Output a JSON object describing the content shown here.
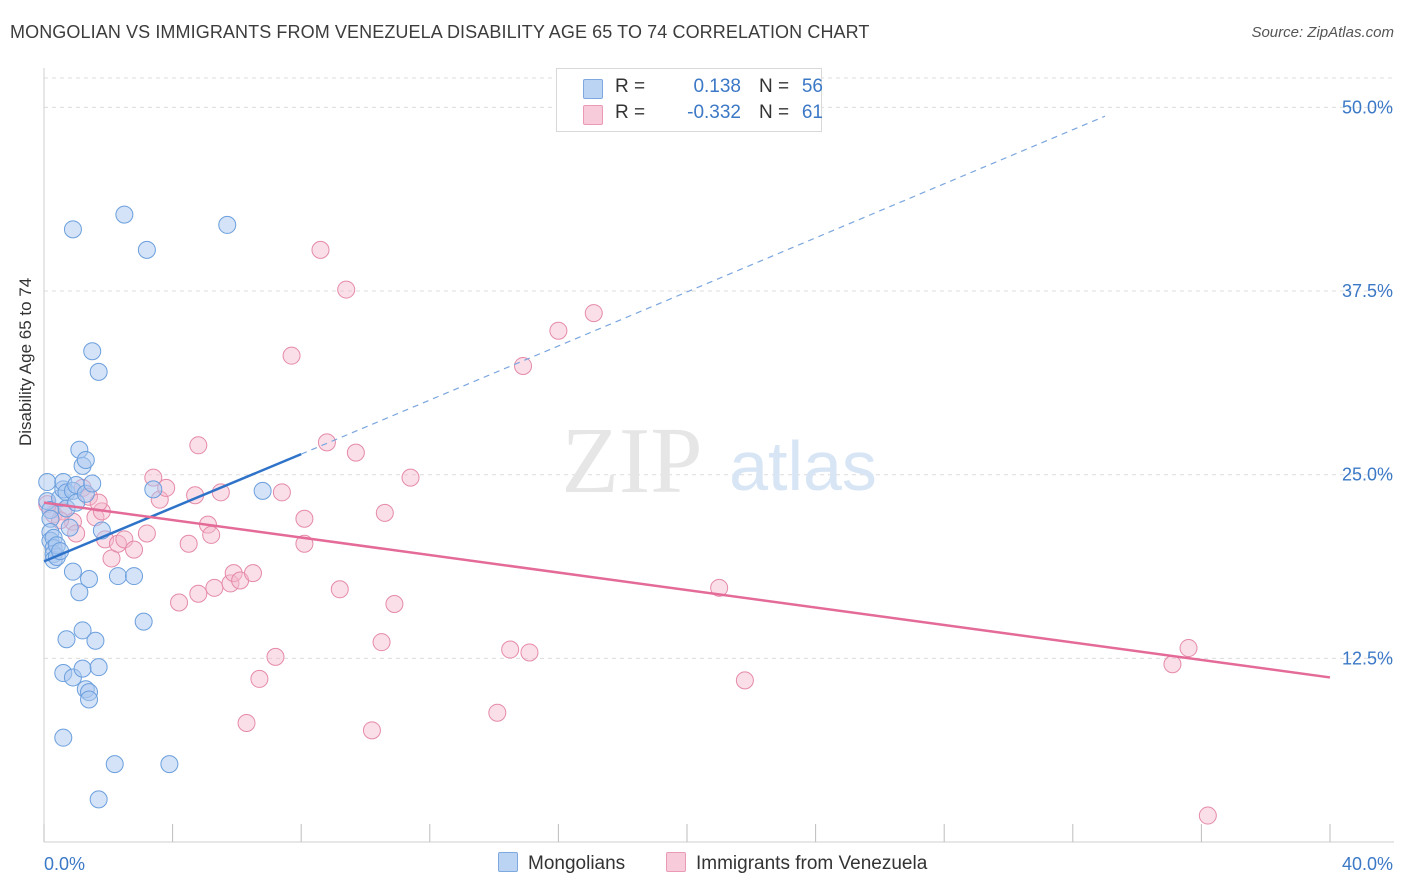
{
  "title": "MONGOLIAN VS IMMIGRANTS FROM VENEZUELA DISABILITY AGE 65 TO 74 CORRELATION CHART",
  "source": "Source: ZipAtlas.com",
  "watermark": {
    "zip": "ZIP",
    "atlas": "atlas"
  },
  "legend": {
    "r_label": "R =",
    "n_label": "N =",
    "series": [
      {
        "r": "0.138",
        "n": "56"
      },
      {
        "r": "-0.332",
        "n": "61"
      }
    ]
  },
  "colors": {
    "blue_fill": "#a9c8ef",
    "blue_stroke": "#6b9fdd",
    "blue_line": "#2f73c9",
    "pink_fill": "#f5b8cb",
    "pink_stroke": "#e58aa8",
    "pink_line": "#e46a97",
    "axis_text": "#3b78c6",
    "grid": "#dcdcdc"
  },
  "chart_data": {
    "type": "scatter",
    "title": "MONGOLIAN VS IMMIGRANTS FROM VENEZUELA DISABILITY AGE 65 TO 74 CORRELATION CHART",
    "xlabel": "",
    "ylabel": "Disability Age 65 to 74",
    "xlim": [
      0,
      40
    ],
    "ylim": [
      0,
      52
    ],
    "x_tick_labels": [
      "0.0%",
      "40.0%"
    ],
    "y_ticks": [
      12.5,
      25.0,
      37.5,
      50.0
    ],
    "y_tick_labels": [
      "12.5%",
      "25.0%",
      "37.5%",
      "50.0%"
    ],
    "series": [
      {
        "name": "Mongolians",
        "r": 0.138,
        "n": 56,
        "trend": {
          "x0": 0.0,
          "y0": 19.1,
          "x1": 8.0,
          "y1": 26.4,
          "dashed_to_x": 33.0,
          "dashed_to_y": 49.4
        },
        "points": [
          [
            0.1,
            24.5
          ],
          [
            0.1,
            23.2
          ],
          [
            0.2,
            22.6
          ],
          [
            0.2,
            22.0
          ],
          [
            0.2,
            21.1
          ],
          [
            0.2,
            20.5
          ],
          [
            0.3,
            20.7
          ],
          [
            0.3,
            20.0
          ],
          [
            0.3,
            19.6
          ],
          [
            0.3,
            19.2
          ],
          [
            0.4,
            19.4
          ],
          [
            0.4,
            20.2
          ],
          [
            0.5,
            19.8
          ],
          [
            0.5,
            23.4
          ],
          [
            0.6,
            24.0
          ],
          [
            0.6,
            24.5
          ],
          [
            0.7,
            23.8
          ],
          [
            0.7,
            22.7
          ],
          [
            0.8,
            21.4
          ],
          [
            0.9,
            23.9
          ],
          [
            0.9,
            18.4
          ],
          [
            1.0,
            24.3
          ],
          [
            1.0,
            23.1
          ],
          [
            1.1,
            26.7
          ],
          [
            1.1,
            17.0
          ],
          [
            1.2,
            25.6
          ],
          [
            1.2,
            14.4
          ],
          [
            1.3,
            26.0
          ],
          [
            1.3,
            23.7
          ],
          [
            1.4,
            17.9
          ],
          [
            1.5,
            24.4
          ],
          [
            0.7,
            13.8
          ],
          [
            1.6,
            13.7
          ],
          [
            0.6,
            11.5
          ],
          [
            0.9,
            11.2
          ],
          [
            1.2,
            11.8
          ],
          [
            1.7,
            11.9
          ],
          [
            1.3,
            10.4
          ],
          [
            1.4,
            10.2
          ],
          [
            1.4,
            9.7
          ],
          [
            0.6,
            7.1
          ],
          [
            1.5,
            33.4
          ],
          [
            1.7,
            32.0
          ],
          [
            0.9,
            41.7
          ],
          [
            2.5,
            42.7
          ],
          [
            3.2,
            40.3
          ],
          [
            5.7,
            42.0
          ],
          [
            1.8,
            21.2
          ],
          [
            2.3,
            18.1
          ],
          [
            2.8,
            18.1
          ],
          [
            3.4,
            24.0
          ],
          [
            3.1,
            15.0
          ],
          [
            3.9,
            5.3
          ],
          [
            2.2,
            5.3
          ],
          [
            1.7,
            2.9
          ],
          [
            6.8,
            23.9
          ]
        ]
      },
      {
        "name": "Immigrants from Venezuela",
        "r": -0.332,
        "n": 61,
        "trend": {
          "x0": 0.0,
          "y0": 23.1,
          "x1": 40.0,
          "y1": 11.2
        },
        "points": [
          [
            0.1,
            23.0
          ],
          [
            0.3,
            22.3
          ],
          [
            0.6,
            22.5
          ],
          [
            0.9,
            21.8
          ],
          [
            1.0,
            21.0
          ],
          [
            1.2,
            24.1
          ],
          [
            1.4,
            23.5
          ],
          [
            1.6,
            22.1
          ],
          [
            1.8,
            22.5
          ],
          [
            1.9,
            20.6
          ],
          [
            2.1,
            19.3
          ],
          [
            2.3,
            20.3
          ],
          [
            2.5,
            20.6
          ],
          [
            2.8,
            19.9
          ],
          [
            3.2,
            21.0
          ],
          [
            3.4,
            24.8
          ],
          [
            3.6,
            23.3
          ],
          [
            3.8,
            24.1
          ],
          [
            4.2,
            16.3
          ],
          [
            4.5,
            20.3
          ],
          [
            4.7,
            23.6
          ],
          [
            4.8,
            16.9
          ],
          [
            4.8,
            27.0
          ],
          [
            5.1,
            21.6
          ],
          [
            5.2,
            20.9
          ],
          [
            5.3,
            17.3
          ],
          [
            5.5,
            23.8
          ],
          [
            5.8,
            17.6
          ],
          [
            5.9,
            18.3
          ],
          [
            6.1,
            17.8
          ],
          [
            6.3,
            8.1
          ],
          [
            6.5,
            18.3
          ],
          [
            6.7,
            11.1
          ],
          [
            7.2,
            12.6
          ],
          [
            7.4,
            23.8
          ],
          [
            7.7,
            33.1
          ],
          [
            8.1,
            22.0
          ],
          [
            8.1,
            20.3
          ],
          [
            8.6,
            40.3
          ],
          [
            8.8,
            27.2
          ],
          [
            9.2,
            17.2
          ],
          [
            9.4,
            37.6
          ],
          [
            9.7,
            26.5
          ],
          [
            10.2,
            7.6
          ],
          [
            10.5,
            13.6
          ],
          [
            10.6,
            22.4
          ],
          [
            10.9,
            16.2
          ],
          [
            11.4,
            24.8
          ],
          [
            14.1,
            8.8
          ],
          [
            14.5,
            13.1
          ],
          [
            14.9,
            32.4
          ],
          [
            15.1,
            12.9
          ],
          [
            16.0,
            34.8
          ],
          [
            17.1,
            36.0
          ],
          [
            21.0,
            17.3
          ],
          [
            21.8,
            11.0
          ],
          [
            35.1,
            12.1
          ],
          [
            35.6,
            13.2
          ],
          [
            36.2,
            1.8
          ],
          [
            1.7,
            23.1
          ],
          [
            0.5,
            21.9
          ]
        ]
      }
    ]
  }
}
